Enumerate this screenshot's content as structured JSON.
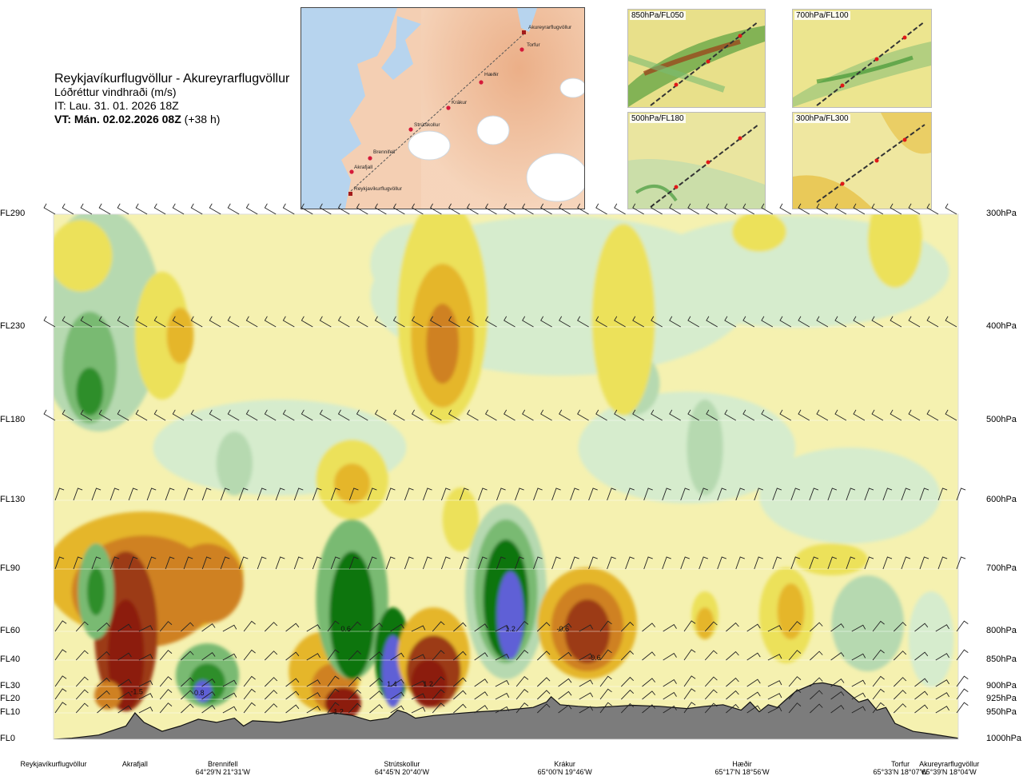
{
  "header": {
    "route": "Reykjavíkurflugvöllur - Akureyrarflugvöllur",
    "quantity": "Lóðréttur vindhraði (m/s)",
    "issue_time": "IT: Lau. 31. 01. 2026 18Z",
    "valid_time": "VT: Mán. 02.02.2026 08Z",
    "lead": "(+38 h)"
  },
  "route_map": {
    "waypoints": [
      "Akureyrarflugvöllur",
      "Torfur",
      "Hæðir",
      "Krákur",
      "Strútskollur",
      "Brennifell",
      "Akrafjall",
      "Reykjavíkurflugvöllur"
    ]
  },
  "inset_maps": [
    {
      "label": "850hPa/FL050"
    },
    {
      "label": "700hPa/FL100"
    },
    {
      "label": "500hPa/FL180"
    },
    {
      "label": "300hPa/FL300"
    }
  ],
  "chart_data": {
    "type": "heatmap",
    "title": "Reykjavíkurflugvöllur - Akureyrarflugvöllur",
    "subtitle": "Lóðréttur vindhraði (m/s)",
    "levels": [
      {
        "fl": "FL290",
        "hpa": "300hPa",
        "p": 300
      },
      {
        "fl": "FL230",
        "hpa": "400hPa",
        "p": 400
      },
      {
        "fl": "FL180",
        "hpa": "500hPa",
        "p": 500
      },
      {
        "fl": "FL130",
        "hpa": "600hPa",
        "p": 600
      },
      {
        "fl": "FL90",
        "hpa": "700hPa",
        "p": 700
      },
      {
        "fl": "FL60",
        "hpa": "800hPa",
        "p": 800
      },
      {
        "fl": "FL40",
        "hpa": "850hPa",
        "p": 850
      },
      {
        "fl": "FL30",
        "hpa": "900hPa",
        "p": 900
      },
      {
        "fl": "FL20",
        "hpa": "925hPa",
        "p": 925
      },
      {
        "fl": "FL10",
        "hpa": "950hPa",
        "p": 950
      },
      {
        "fl": "FL0",
        "hpa": "1000hPa",
        "p": 1000
      }
    ],
    "stations": [
      {
        "name": "Reykjavíkurflugvöllur",
        "coord": "",
        "dist": 0.0
      },
      {
        "name": "Akrafjall",
        "coord": "",
        "dist": 0.09
      },
      {
        "name": "Brennifell",
        "coord": "64°29'N 21°31'W",
        "dist": 0.187
      },
      {
        "name": "Strútskollur",
        "coord": "64°45'N 20°40'W",
        "dist": 0.385
      },
      {
        "name": "Krákur",
        "coord": "65°00'N 19°46'W",
        "dist": 0.565
      },
      {
        "name": "Hæðir",
        "coord": "65°17'N 18°56'W",
        "dist": 0.761
      },
      {
        "name": "Torfur",
        "coord": "65°33'N 18°07'W",
        "dist": 0.936
      },
      {
        "name": "Akureyrarflugvöllur",
        "coord": "65°39'N 18°04'W",
        "dist": 0.99
      }
    ],
    "value_labels": [
      {
        "text": "0.6",
        "dist": 0.323,
        "p": 800
      },
      {
        "text": "1.4",
        "dist": 0.374,
        "p": 900
      },
      {
        "text": "1.2",
        "dist": 0.414,
        "p": 900
      },
      {
        "text": "1.2",
        "dist": 0.505,
        "p": 800
      },
      {
        "text": "-0.6",
        "dist": 0.563,
        "p": 800
      },
      {
        "text": "-0.6",
        "dist": 0.598,
        "p": 850
      },
      {
        "text": "0.8",
        "dist": 0.161,
        "p": 917
      },
      {
        "text": "1.2",
        "dist": 0.315,
        "p": 952
      },
      {
        "text": "-1.5",
        "dist": 0.092,
        "p": 915
      }
    ],
    "colors": {
      "weak_down": "#f5f1b0",
      "down_1": "#ece15a",
      "down_2": "#e5b62a",
      "down_3": "#cf8120",
      "down_4": "#9c3b15",
      "down_5": "#8c1a10",
      "weak_up": "#d6eccd",
      "up_1": "#b6d9b0",
      "up_2": "#79ba72",
      "up_3": "#2f8e2a",
      "up_4": "#0b7411",
      "up_5": "#5f61d6",
      "terrain": "#7c7c7c"
    }
  }
}
